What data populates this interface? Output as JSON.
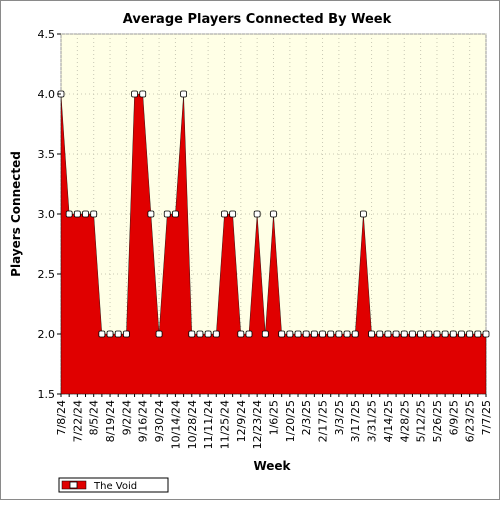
{
  "chart_data": {
    "type": "area",
    "title": "Average Players Connected By Week",
    "xlabel": "Week",
    "ylabel": "Players Connected",
    "ylim": [
      1.5,
      4.5
    ],
    "yticks": [
      "1.5",
      "2.0",
      "2.5",
      "3.0",
      "3.5",
      "4.0",
      "4.5"
    ],
    "xtick_labels": [
      "7/8/24",
      "7/22/24",
      "8/5/24",
      "8/19/24",
      "9/2/24",
      "9/16/24",
      "9/30/24",
      "10/14/24",
      "10/28/24",
      "11/11/24",
      "11/25/24",
      "12/9/24",
      "12/23/24",
      "1/6/25",
      "1/20/25",
      "2/3/25",
      "2/17/25",
      "3/3/25",
      "3/17/25",
      "3/31/25",
      "4/14/25",
      "4/28/25",
      "5/12/25",
      "5/26/25",
      "6/9/25",
      "6/23/25",
      "7/7/25"
    ],
    "x": [
      "7/8/24",
      "7/15/24",
      "7/22/24",
      "7/29/24",
      "8/5/24",
      "8/12/24",
      "8/19/24",
      "8/26/24",
      "9/2/24",
      "9/9/24",
      "9/16/24",
      "9/23/24",
      "9/30/24",
      "10/7/24",
      "10/14/24",
      "10/21/24",
      "10/28/24",
      "11/4/24",
      "11/11/24",
      "11/18/24",
      "11/25/24",
      "12/2/24",
      "12/9/24",
      "12/16/24",
      "12/23/24",
      "12/30/24",
      "1/6/25",
      "1/13/25",
      "1/20/25",
      "1/27/25",
      "2/3/25",
      "2/10/25",
      "2/17/25",
      "2/24/25",
      "3/3/25",
      "3/10/25",
      "3/17/25",
      "3/24/25",
      "3/31/25",
      "4/7/25",
      "4/14/25",
      "4/21/25",
      "4/28/25",
      "5/5/25",
      "5/12/25",
      "5/19/25",
      "5/26/25",
      "6/2/25",
      "6/9/25",
      "6/16/25",
      "6/23/25",
      "6/30/25",
      "7/7/25"
    ],
    "series": [
      {
        "name": "The Void",
        "color": "#e00000",
        "values": [
          4.0,
          3.0,
          3.0,
          3.0,
          3.0,
          2.0,
          2.0,
          2.0,
          2.0,
          4.0,
          4.0,
          3.0,
          2.0,
          3.0,
          3.0,
          4.0,
          2.0,
          2.0,
          2.0,
          2.0,
          3.0,
          3.0,
          2.0,
          2.0,
          3.0,
          2.0,
          3.0,
          2.0,
          2.0,
          2.0,
          2.0,
          2.0,
          2.0,
          2.0,
          2.0,
          2.0,
          2.0,
          3.0,
          2.0,
          2.0,
          2.0,
          2.0,
          2.0,
          2.0,
          2.0,
          2.0,
          2.0,
          2.0,
          2.0,
          2.0,
          2.0,
          2.0,
          2.0
        ]
      }
    ],
    "plot_background": "#ffffe6",
    "grid": true,
    "legend_position": "bottom-left"
  }
}
